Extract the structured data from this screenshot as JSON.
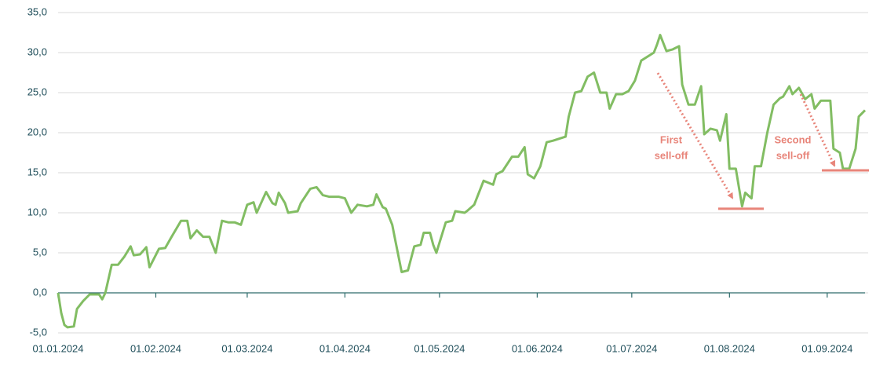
{
  "chart_data": {
    "type": "line",
    "color": "#82bd63",
    "x": [
      "2024-01-01",
      "2024-01-02",
      "2024-01-03",
      "2024-01-04",
      "2024-01-06",
      "2024-01-07",
      "2024-01-09",
      "2024-01-11",
      "2024-01-14",
      "2024-01-15",
      "2024-01-16",
      "2024-01-18",
      "2024-01-20",
      "2024-01-22",
      "2024-01-24",
      "2024-01-25",
      "2024-01-27",
      "2024-01-29",
      "2024-01-30",
      "2024-02-02",
      "2024-02-04",
      "2024-02-06",
      "2024-02-09",
      "2024-02-11",
      "2024-02-12",
      "2024-02-14",
      "2024-02-16",
      "2024-02-18",
      "2024-02-20",
      "2024-02-22",
      "2024-02-24",
      "2024-02-26",
      "2024-02-28",
      "2024-03-01",
      "2024-03-03",
      "2024-03-04",
      "2024-03-07",
      "2024-03-09",
      "2024-03-10",
      "2024-03-11",
      "2024-03-13",
      "2024-03-14",
      "2024-03-17",
      "2024-03-18",
      "2024-03-21",
      "2024-03-23",
      "2024-03-25",
      "2024-03-27",
      "2024-03-30",
      "2024-04-01",
      "2024-04-03",
      "2024-04-05",
      "2024-04-08",
      "2024-04-10",
      "2024-04-11",
      "2024-04-13",
      "2024-04-14",
      "2024-04-16",
      "2024-04-17",
      "2024-04-19",
      "2024-04-21",
      "2024-04-23",
      "2024-04-25",
      "2024-04-26",
      "2024-04-28",
      "2024-04-29",
      "2024-04-30",
      "2024-05-03",
      "2024-05-05",
      "2024-05-06",
      "2024-05-09",
      "2024-05-10",
      "2024-05-12",
      "2024-05-15",
      "2024-05-18",
      "2024-05-19",
      "2024-05-21",
      "2024-05-24",
      "2024-05-26",
      "2024-05-28",
      "2024-05-29",
      "2024-05-31",
      "2024-06-02",
      "2024-06-04",
      "2024-06-06",
      "2024-06-10",
      "2024-06-11",
      "2024-06-13",
      "2024-06-15",
      "2024-06-17",
      "2024-06-19",
      "2024-06-21",
      "2024-06-23",
      "2024-06-24",
      "2024-06-26",
      "2024-06-28",
      "2024-06-30",
      "2024-07-02",
      "2024-07-04",
      "2024-07-06",
      "2024-07-08",
      "2024-07-09",
      "2024-07-10",
      "2024-07-12",
      "2024-07-14",
      "2024-07-16",
      "2024-07-17",
      "2024-07-19",
      "2024-07-21",
      "2024-07-23",
      "2024-07-24",
      "2024-07-26",
      "2024-07-28",
      "2024-07-29",
      "2024-07-31",
      "2024-08-01",
      "2024-08-03",
      "2024-08-05",
      "2024-08-06",
      "2024-08-08",
      "2024-08-09",
      "2024-08-11",
      "2024-08-13",
      "2024-08-15",
      "2024-08-17",
      "2024-08-18",
      "2024-08-20",
      "2024-08-21",
      "2024-08-23",
      "2024-08-25",
      "2024-08-27",
      "2024-08-28",
      "2024-08-30",
      "2024-09-02",
      "2024-09-03",
      "2024-09-05",
      "2024-09-06",
      "2024-09-08",
      "2024-09-10",
      "2024-09-11",
      "2024-09-13"
    ],
    "values": [
      0.0,
      -2.5,
      -4.0,
      -4.3,
      -4.2,
      -2.0,
      -1.0,
      -0.2,
      -0.2,
      -0.8,
      0.0,
      3.5,
      3.5,
      4.5,
      5.8,
      4.7,
      4.8,
      5.7,
      3.2,
      5.5,
      5.6,
      7.0,
      9.0,
      9.0,
      6.8,
      7.8,
      7.0,
      7.0,
      5.0,
      9.0,
      8.8,
      8.8,
      8.5,
      11.0,
      11.3,
      10.0,
      12.6,
      11.2,
      11.0,
      12.5,
      11.2,
      10.0,
      10.2,
      11.2,
      13.0,
      13.2,
      12.2,
      12.0,
      12.0,
      11.8,
      10.0,
      11.0,
      10.8,
      11.0,
      12.3,
      10.7,
      10.5,
      8.5,
      6.5,
      2.6,
      2.8,
      5.8,
      6.0,
      7.5,
      7.5,
      6.0,
      5.0,
      8.8,
      9.0,
      10.2,
      10.0,
      10.3,
      11.0,
      14.0,
      13.5,
      14.8,
      15.2,
      17.0,
      17.0,
      18.2,
      14.8,
      14.3,
      15.8,
      18.8,
      19.0,
      19.5,
      22.0,
      25.0,
      25.2,
      27.0,
      27.5,
      25.0,
      25.0,
      23.0,
      24.8,
      24.8,
      25.2,
      26.5,
      29.0,
      29.5,
      30.0,
      31.0,
      32.2,
      30.2,
      30.4,
      30.8,
      26.0,
      23.5,
      23.5,
      25.8,
      19.8,
      20.5,
      20.3,
      19.0,
      22.3,
      15.5,
      15.5,
      10.8,
      12.5,
      11.8,
      15.8,
      15.8,
      20.0,
      23.5,
      24.3,
      24.5,
      25.8,
      24.8,
      25.6,
      24.2,
      24.8,
      23.0,
      24.0,
      24.0,
      18.0,
      17.5,
      15.5,
      15.5,
      18.0,
      22.0,
      22.8
    ],
    "xlim": [
      "2024-01-01",
      "2024-09-13"
    ],
    "xticks": [
      {
        "value": "2024-01-01",
        "label": "01.01.2024"
      },
      {
        "value": "2024-02-01",
        "label": "01.02.2024"
      },
      {
        "value": "2024-03-01",
        "label": "01.03.2024"
      },
      {
        "value": "2024-04-01",
        "label": "01.04.2024"
      },
      {
        "value": "2024-05-01",
        "label": "01.05.2024"
      },
      {
        "value": "2024-06-01",
        "label": "01.06.2024"
      },
      {
        "value": "2024-07-01",
        "label": "01.07.2024"
      },
      {
        "value": "2024-08-01",
        "label": "01.08.2024"
      },
      {
        "value": "2024-09-01",
        "label": "01.09.2024"
      }
    ],
    "ylim": [
      -5,
      35
    ],
    "yticks": [
      {
        "value": -5,
        "label": "-5,0"
      },
      {
        "value": 0,
        "label": "0,0"
      },
      {
        "value": 5,
        "label": "5,0"
      },
      {
        "value": 10,
        "label": "10,0"
      },
      {
        "value": 15,
        "label": "15,0"
      },
      {
        "value": 20,
        "label": "20,0"
      },
      {
        "value": 25,
        "label": "25,0"
      },
      {
        "value": 30,
        "label": "30,0"
      },
      {
        "value": 35,
        "label": "35,0"
      }
    ],
    "grid": true,
    "annotations": [
      {
        "text": [
          "First",
          "sell-off"
        ],
        "level": 10.5,
        "color": "#e8857a"
      },
      {
        "text": [
          "Second",
          "sell-off"
        ],
        "level": 15.3,
        "color": "#e8857a"
      }
    ]
  }
}
